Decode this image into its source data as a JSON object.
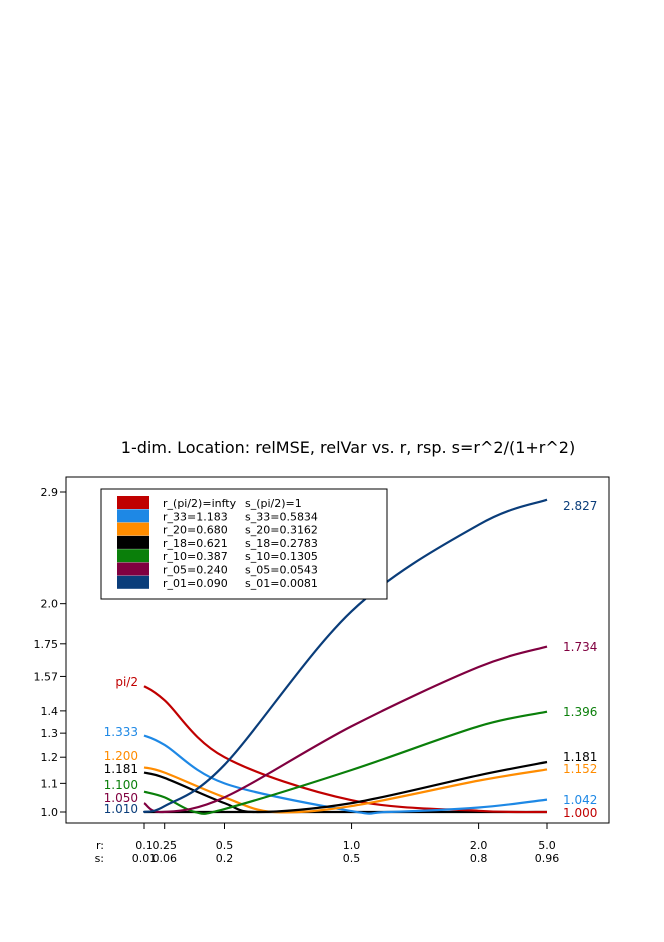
{
  "chart_data": {
    "type": "line",
    "title": "1-dim. Location: relMSE, relVar vs. r, rsp. s=r^2/(1+r^2)",
    "xlabel": "",
    "ylabel": "",
    "x_scale": "s=r^2/(1+r^2)",
    "x_ticks": [
      {
        "r": "0.1",
        "s": "0.01",
        "sval": 0.0099
      },
      {
        "r": "0.25",
        "s": "0.06",
        "sval": 0.0588
      },
      {
        "r": "0.5",
        "s": "0.2",
        "sval": 0.2
      },
      {
        "r": "1.0",
        "s": "0.5",
        "sval": 0.5
      },
      {
        "r": "2.0",
        "s": "0.8",
        "sval": 0.8
      },
      {
        "r": "5.0",
        "s": "0.96",
        "sval": 0.9615
      }
    ],
    "x_row_labels": {
      "r": "r:",
      "s": "s:"
    },
    "y_scale": "log",
    "y_ticks": [
      "1.0",
      "1.1",
      "1.2",
      "1.3",
      "1.4",
      "1.57",
      "1.75",
      "2.0",
      "2.9"
    ],
    "y_tick_values": [
      1.0,
      1.1,
      1.2,
      1.3,
      1.4,
      1.57,
      1.75,
      2.0,
      2.9
    ],
    "ylim": [
      0.985,
      2.95
    ],
    "legend_position": "top-left",
    "series": [
      {
        "legend_r": "r_(pi/2)=infty",
        "legend_s": "s_(pi/2)=1",
        "color": "#c00000",
        "start_label": "pi/2",
        "end_label": "1.000",
        "points": [
          [
            0.0099,
            1.52
          ],
          [
            0.0588,
            1.45
          ],
          [
            0.2,
            1.2
          ],
          [
            0.5,
            1.04
          ],
          [
            0.8,
            1.004
          ],
          [
            0.9615,
            1.0
          ]
        ]
      },
      {
        "legend_r": "r_33=1.183",
        "legend_s": "s_33=0.5834",
        "color": "#1e88e5",
        "start_label": "1.333",
        "end_label": "1.042",
        "points": [
          [
            0.0099,
            1.29
          ],
          [
            0.0588,
            1.25
          ],
          [
            0.2,
            1.1
          ],
          [
            0.5,
            1.003
          ],
          [
            0.5834,
            1.0
          ],
          [
            0.8,
            1.015
          ],
          [
            0.9615,
            1.042
          ]
        ]
      },
      {
        "legend_r": "r_20=0.680",
        "legend_s": "s_20=0.3162",
        "color": "#ff8c00",
        "start_label": "1.200",
        "end_label": "1.152",
        "points": [
          [
            0.0099,
            1.16
          ],
          [
            0.0588,
            1.14
          ],
          [
            0.2,
            1.05
          ],
          [
            0.3162,
            1.0
          ],
          [
            0.5,
            1.02
          ],
          [
            0.8,
            1.11
          ],
          [
            0.9615,
            1.152
          ]
        ]
      },
      {
        "legend_r": "r_18=0.621",
        "legend_s": "s_18=0.2783",
        "color": "#000000",
        "start_label": "1.181",
        "end_label": "1.181",
        "points": [
          [
            0.0099,
            1.14
          ],
          [
            0.0588,
            1.12
          ],
          [
            0.2,
            1.03
          ],
          [
            0.2783,
            1.0
          ],
          [
            0.5,
            1.03
          ],
          [
            0.8,
            1.13
          ],
          [
            0.9615,
            1.181
          ]
        ]
      },
      {
        "legend_r": "r_10=0.387",
        "legend_s": "s_10=0.1305",
        "color": "#0a7f0a",
        "start_label": "1.100",
        "end_label": "1.396",
        "points": [
          [
            0.0099,
            1.07
          ],
          [
            0.0588,
            1.05
          ],
          [
            0.1305,
            1.0
          ],
          [
            0.2,
            1.01
          ],
          [
            0.5,
            1.15
          ],
          [
            0.8,
            1.33
          ],
          [
            0.9615,
            1.396
          ]
        ]
      },
      {
        "legend_r": "r_05=0.240",
        "legend_s": "s_05=0.0543",
        "color": "#800040",
        "start_label": "1.050",
        "end_label": "1.734",
        "points": [
          [
            0.0099,
            1.03
          ],
          [
            0.0543,
            1.0
          ],
          [
            0.2,
            1.05
          ],
          [
            0.5,
            1.33
          ],
          [
            0.8,
            1.62
          ],
          [
            0.9615,
            1.734
          ]
        ]
      },
      {
        "legend_r": "r_01=0.090",
        "legend_s": "s_01=0.0081",
        "color": "#0a3d7a",
        "start_label": "1.010",
        "end_label": "2.827",
        "points": [
          [
            0.0081,
            1.0
          ],
          [
            0.0588,
            1.02
          ],
          [
            0.2,
            1.17
          ],
          [
            0.5,
            1.95
          ],
          [
            0.8,
            2.6
          ],
          [
            0.9615,
            2.827
          ]
        ]
      }
    ]
  }
}
